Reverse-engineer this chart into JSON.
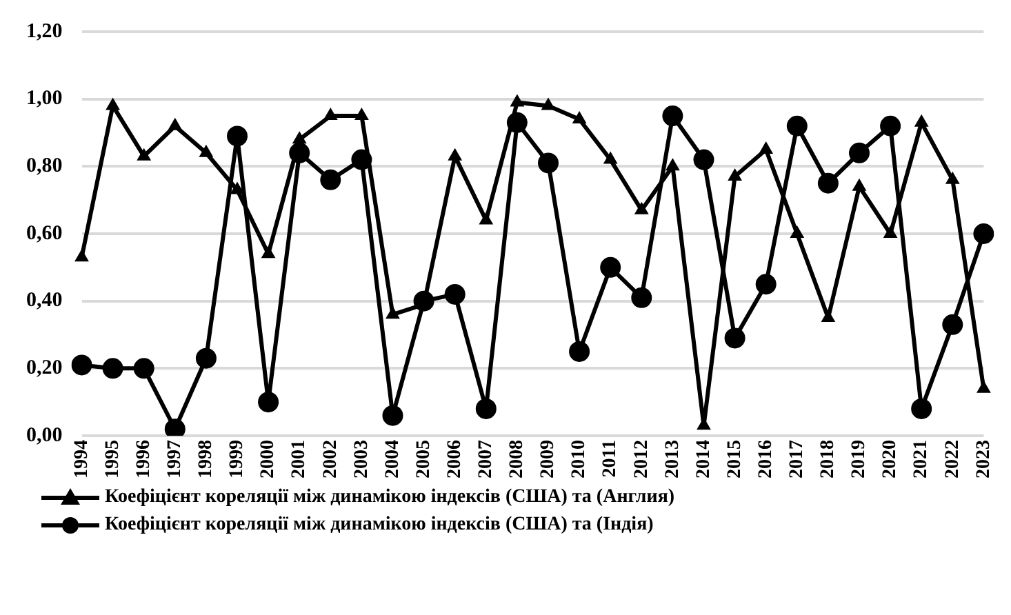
{
  "chart_data": {
    "type": "line",
    "categories": [
      "1994",
      "1995",
      "1996",
      "1997",
      "1998",
      "1999",
      "2000",
      "2001",
      "2002",
      "2003",
      "2004",
      "2005",
      "2006",
      "2007",
      "2008",
      "2009",
      "2010",
      "2011",
      "2012",
      "2013",
      "2014",
      "2015",
      "2016",
      "2017",
      "2018",
      "2019",
      "2020",
      "2021",
      "2022",
      "2023"
    ],
    "series": [
      {
        "name": "Коефіцієнт кореляції між динамікою індексів (США) та (Англия)",
        "color": "#000000",
        "marker": "triangle",
        "values": [
          0.53,
          0.98,
          0.83,
          0.92,
          0.84,
          0.73,
          0.54,
          0.88,
          0.95,
          0.95,
          0.36,
          0.39,
          0.83,
          0.64,
          0.99,
          0.98,
          0.94,
          0.82,
          0.67,
          0.8,
          0.03,
          0.77,
          0.85,
          0.6,
          0.35,
          0.74,
          0.6,
          0.93,
          0.76,
          0.14
        ]
      },
      {
        "name": "Коефіцієнт кореляції між динамікою індексів (США) та (Індія)",
        "color": "#000000",
        "marker": "circle",
        "values": [
          0.21,
          0.2,
          0.2,
          0.02,
          0.23,
          0.89,
          0.1,
          0.84,
          0.76,
          0.82,
          0.06,
          0.4,
          0.42,
          0.08,
          0.93,
          0.81,
          0.25,
          0.5,
          0.41,
          0.95,
          0.82,
          0.29,
          0.45,
          0.92,
          0.75,
          0.84,
          0.92,
          0.08,
          0.33,
          0.6
        ]
      }
    ],
    "ylim": [
      0,
      1.2
    ],
    "yticks": [
      {
        "value": 0,
        "label": "0,00"
      },
      {
        "value": 0.2,
        "label": "0,20"
      },
      {
        "value": 0.4,
        "label": "0,40"
      },
      {
        "value": 0.6,
        "label": "0,60"
      },
      {
        "value": 0.8,
        "label": "0,80"
      },
      {
        "value": 1,
        "label": "1,00"
      },
      {
        "value": 1.2,
        "label": "1,20"
      }
    ],
    "grid": "y",
    "legend": "bottom",
    "line_style": "solid"
  }
}
